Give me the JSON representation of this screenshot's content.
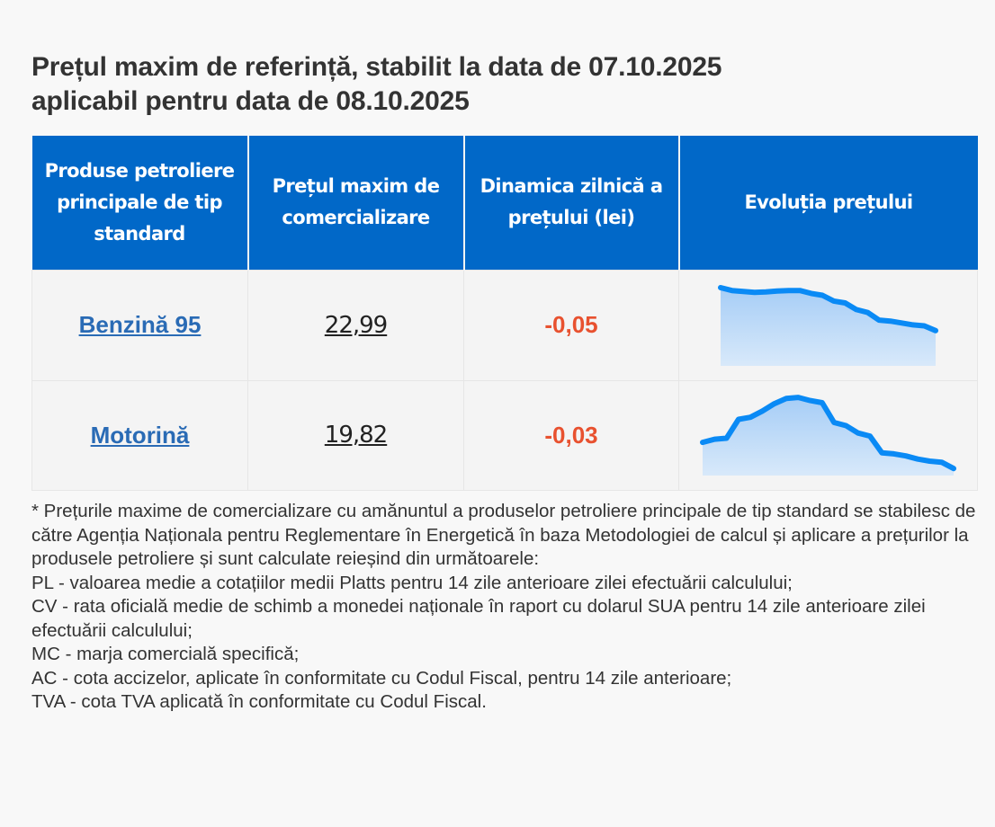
{
  "title": {
    "line1": "Prețul maxim de referință, stabilit la data de 07.10.2025",
    "line2": "aplicabil pentru data de 08.10.2025"
  },
  "table": {
    "headers": [
      "Produse petroliere principale de tip standard",
      "Prețul maxim de comercializare",
      "Dinamica zilnică a prețului (lei)",
      "Evoluția prețului"
    ],
    "rows": [
      {
        "product": "Benzină 95",
        "price": "22,99",
        "change": "-0,05"
      },
      {
        "product": "Motorină",
        "price": "19,82",
        "change": "-0,03"
      }
    ]
  },
  "colors": {
    "header_bg": "#0168c8",
    "link": "#2a6bb5",
    "negative_change": "#e8512f",
    "sparkline_stroke": "#0a8af5",
    "sparkline_fill_top": "#a6cdf6",
    "sparkline_fill_bottom": "#d8e9fa"
  },
  "chart_data": [
    {
      "type": "area",
      "title": "Evoluția prețului - Benzină 95",
      "trend": "descending",
      "values": [
        100,
        97,
        96,
        95,
        95.5,
        96.5,
        97,
        97,
        94,
        92,
        86,
        84,
        77,
        74,
        66,
        65,
        63,
        61,
        60,
        55
      ]
    },
    {
      "type": "area",
      "title": "Evoluția prețului - Motorină",
      "trend": "peak-then-descending",
      "values": [
        50,
        53,
        54,
        72,
        74,
        80,
        87,
        92,
        93,
        90,
        88,
        69,
        66,
        59,
        56,
        40,
        39,
        37,
        34,
        32,
        31,
        25
      ]
    }
  ]
}
